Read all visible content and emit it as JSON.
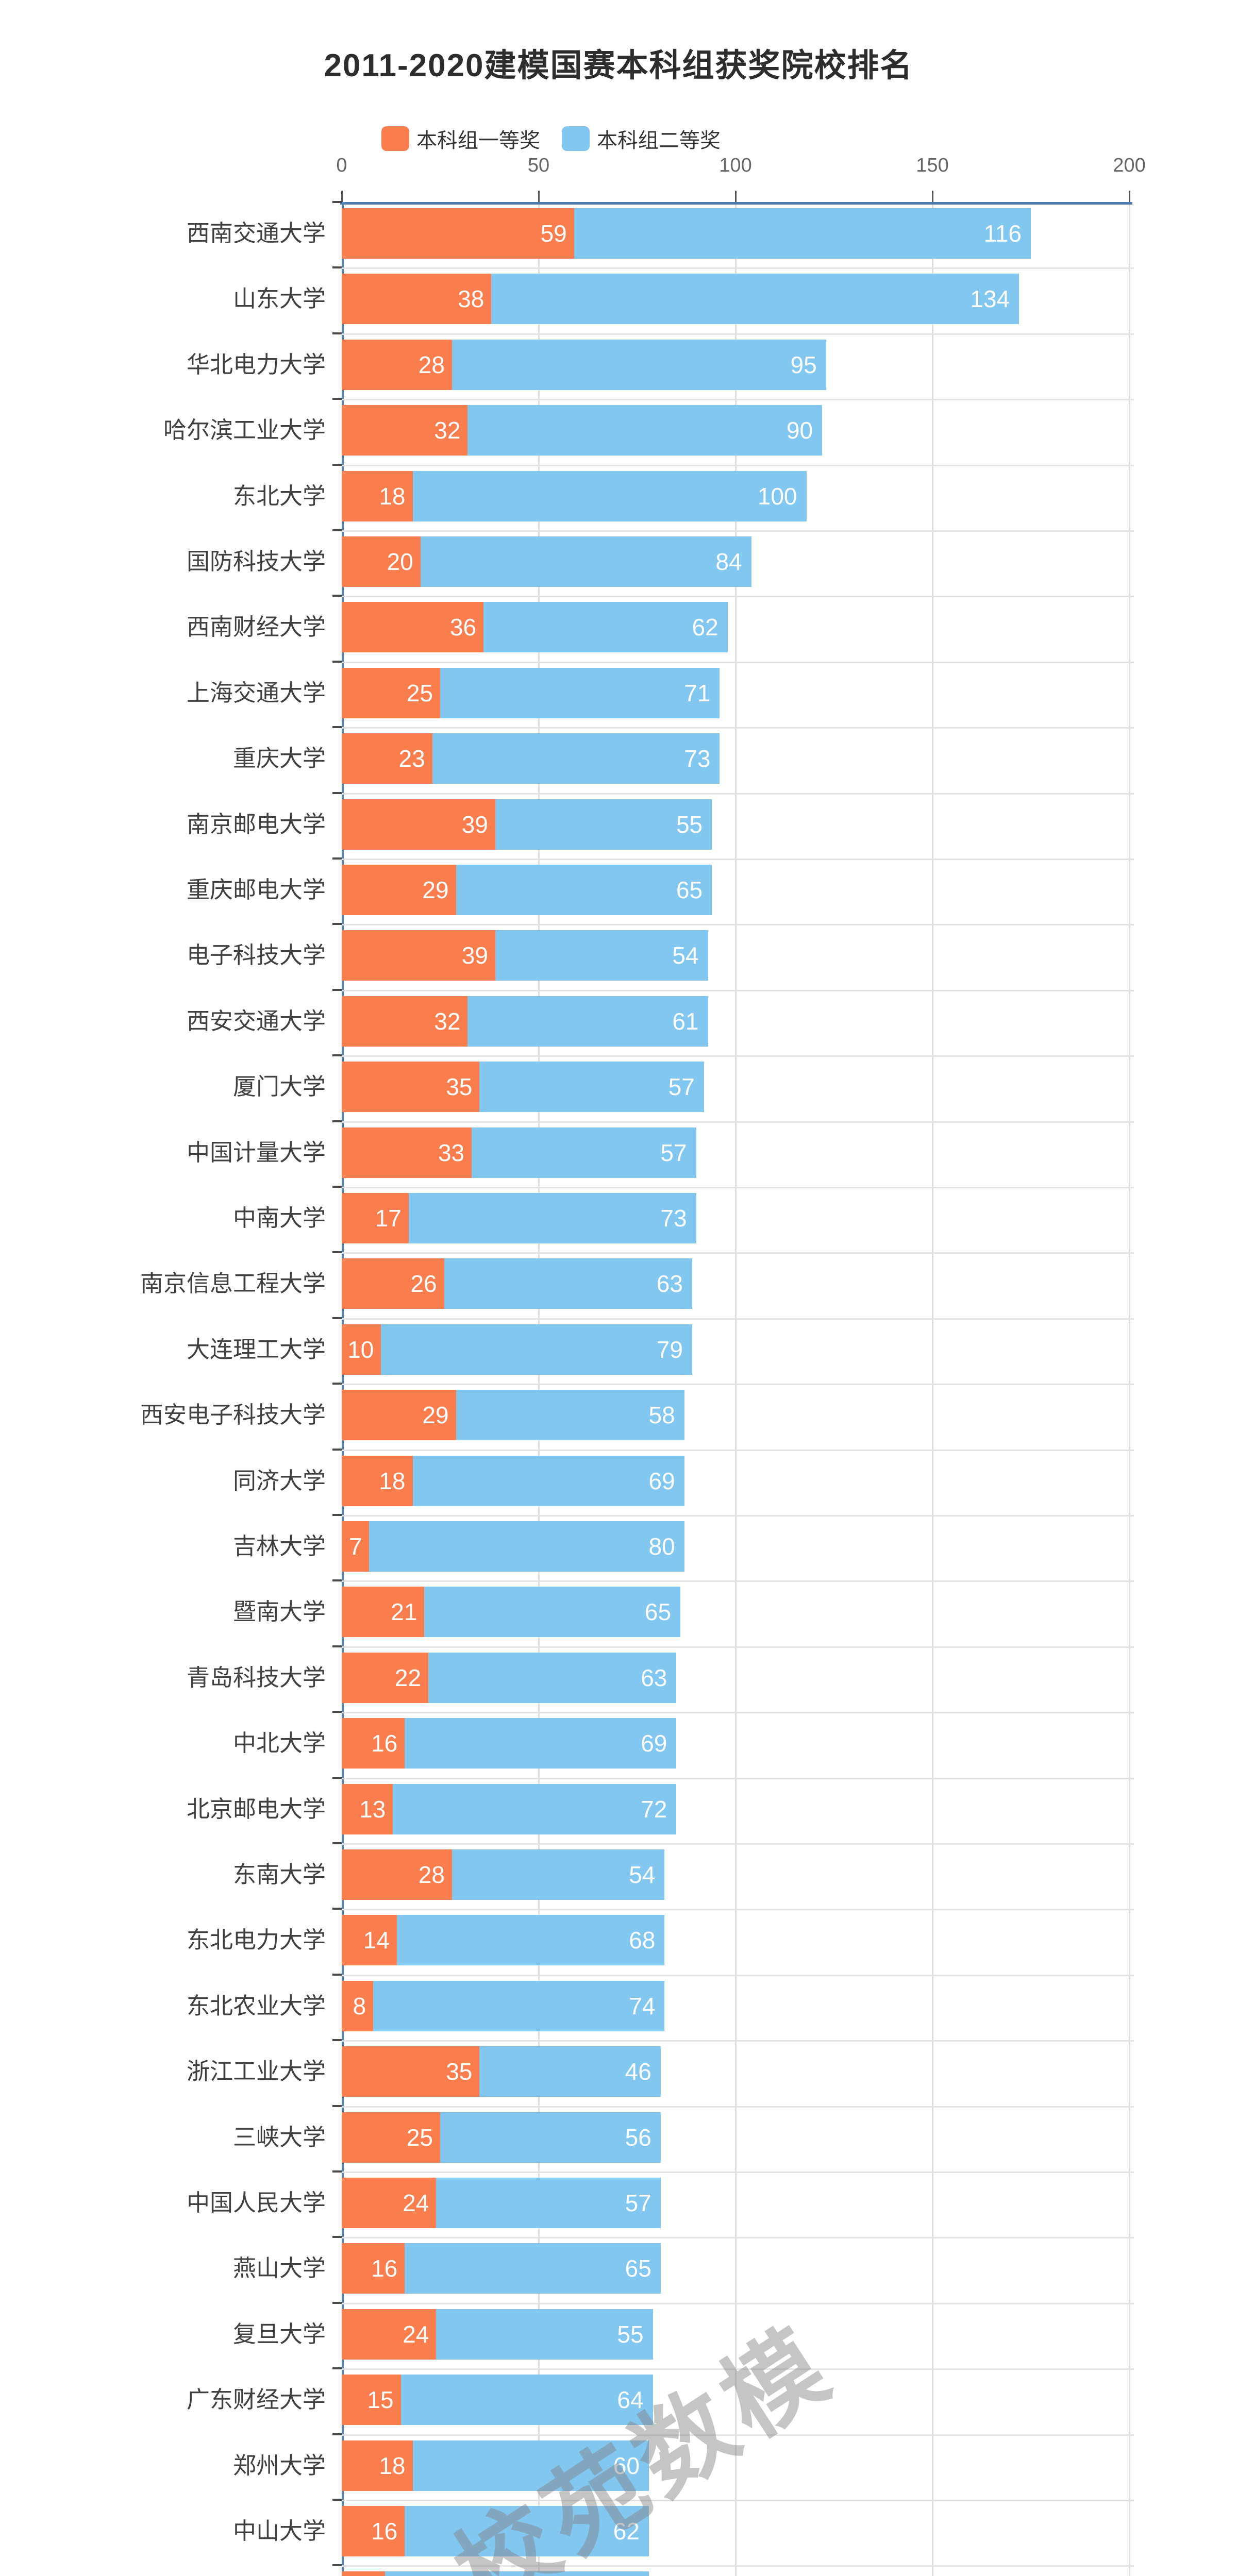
{
  "title": "2011-2020建模国赛本科组获奖院校排名",
  "watermark": "校苑数模",
  "colors": {
    "first_prize": "#fa7e4d",
    "second_prize": "#82c7f0",
    "axis_line": "#4c7bad",
    "y_axis_line": "#5583b2",
    "grid_line": "#dedede",
    "row_separator": "#e3e3e3",
    "tick": "#4a4a4a",
    "title_text": "#2d2d2d",
    "category_text": "#404040",
    "axis_text": "#666666",
    "value_text": "#ffffff",
    "watermark_text": "#808080"
  },
  "chart_data": {
    "type": "bar",
    "orientation": "horizontal",
    "stacked": true,
    "title": "2011-2020建模国赛本科组获奖院校排名",
    "legend_position": "top",
    "grid": true,
    "x_ticks": [
      0,
      50,
      100,
      150,
      200
    ],
    "xlim": [
      0,
      200
    ],
    "categories": [
      "西南交通大学",
      "山东大学",
      "华北电力大学",
      "哈尔滨工业大学",
      "东北大学",
      "国防科技大学",
      "西南财经大学",
      "上海交通大学",
      "重庆大学",
      "南京邮电大学",
      "重庆邮电大学",
      "电子科技大学",
      "西安交通大学",
      "厦门大学",
      "中国计量大学",
      "中南大学",
      "南京信息工程大学",
      "大连理工大学",
      "西安电子科技大学",
      "同济大学",
      "吉林大学",
      "暨南大学",
      "青岛科技大学",
      "中北大学",
      "北京邮电大学",
      "东南大学",
      "东北电力大学",
      "东北农业大学",
      "浙江工业大学",
      "三峡大学",
      "中国人民大学",
      "燕山大学",
      "复旦大学",
      "广东财经大学",
      "郑州大学",
      "中山大学"
    ],
    "series": [
      {
        "name": "本科组一等奖",
        "color": "#fa7e4d",
        "values": [
          59,
          38,
          28,
          32,
          18,
          20,
          36,
          25,
          23,
          39,
          29,
          39,
          32,
          35,
          33,
          17,
          26,
          10,
          29,
          18,
          7,
          21,
          22,
          16,
          13,
          28,
          14,
          8,
          35,
          25,
          24,
          16,
          24,
          15,
          18,
          16
        ]
      },
      {
        "name": "本科组二等奖",
        "color": "#82c7f0",
        "values": [
          116,
          134,
          95,
          90,
          100,
          84,
          62,
          71,
          73,
          55,
          65,
          54,
          61,
          57,
          57,
          73,
          63,
          79,
          58,
          69,
          80,
          65,
          63,
          69,
          72,
          54,
          68,
          74,
          46,
          56,
          57,
          65,
          55,
          64,
          60,
          62
        ]
      }
    ],
    "partial_bottom_row": {
      "first_prize": 11,
      "second_prize": 67
    }
  }
}
